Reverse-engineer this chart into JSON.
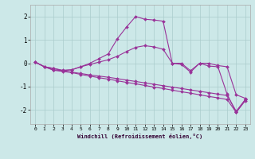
{
  "xlabel": "Windchill (Refroidissement éolien,°C)",
  "background_color": "#cce8e8",
  "grid_color": "#aacccc",
  "line_color": "#993399",
  "xlim": [
    -0.5,
    23.5
  ],
  "ylim": [
    -2.6,
    2.5
  ],
  "yticks": [
    -2,
    -1,
    0,
    1,
    2
  ],
  "xticks": [
    0,
    1,
    2,
    3,
    4,
    5,
    6,
    7,
    8,
    9,
    10,
    11,
    12,
    13,
    14,
    15,
    16,
    17,
    18,
    19,
    20,
    21,
    22,
    23
  ],
  "series": [
    {
      "x": [
        0,
        1,
        2,
        3,
        4,
        5,
        6,
        7,
        8,
        9,
        10,
        11,
        12,
        13,
        14,
        15,
        16,
        17,
        18,
        19,
        20,
        21,
        22,
        23
      ],
      "y": [
        0.05,
        -0.15,
        -0.3,
        -0.35,
        -0.4,
        -0.48,
        -0.55,
        -0.62,
        -0.68,
        -0.75,
        -0.82,
        -0.88,
        -0.95,
        -1.02,
        -1.08,
        -1.15,
        -1.22,
        -1.28,
        -1.35,
        -1.42,
        -1.48,
        -1.55,
        -2.1,
        -1.6
      ]
    },
    {
      "x": [
        0,
        1,
        2,
        3,
        4,
        5,
        6,
        7,
        8,
        9,
        10,
        11,
        12,
        13,
        14,
        15,
        16,
        17,
        18,
        19,
        20,
        21,
        22,
        23
      ],
      "y": [
        0.05,
        -0.15,
        -0.28,
        -0.32,
        -0.38,
        -0.44,
        -0.5,
        -0.55,
        -0.6,
        -0.66,
        -0.72,
        -0.78,
        -0.84,
        -0.9,
        -0.96,
        -1.02,
        -1.08,
        -1.14,
        -1.2,
        -1.26,
        -1.32,
        -1.38,
        -2.05,
        -1.55
      ]
    },
    {
      "x": [
        0,
        1,
        2,
        3,
        4,
        5,
        6,
        7,
        8,
        9,
        10,
        11,
        12,
        13,
        14,
        15,
        16,
        17,
        18,
        19,
        20,
        21,
        22,
        23
      ],
      "y": [
        0.05,
        -0.15,
        -0.22,
        -0.3,
        -0.28,
        -0.15,
        -0.05,
        0.05,
        0.15,
        0.3,
        0.5,
        0.68,
        0.75,
        0.7,
        0.6,
        0.0,
        -0.05,
        -0.38,
        0.0,
        0.0,
        -0.1,
        -0.15,
        -1.35,
        -1.5
      ]
    },
    {
      "x": [
        0,
        1,
        2,
        3,
        4,
        5,
        6,
        7,
        8,
        9,
        10,
        11,
        12,
        13,
        14,
        15,
        16,
        17,
        18,
        19,
        20,
        21,
        22,
        23
      ],
      "y": [
        0.05,
        -0.15,
        -0.22,
        -0.32,
        -0.28,
        -0.15,
        0.0,
        0.2,
        0.4,
        1.05,
        1.55,
        2.0,
        1.88,
        1.85,
        1.8,
        0.0,
        0.0,
        -0.32,
        0.0,
        -0.12,
        -0.15,
        -1.32,
        -2.1,
        -1.55
      ]
    }
  ],
  "marker": "D",
  "markersize": 2.0,
  "linewidth": 0.8
}
